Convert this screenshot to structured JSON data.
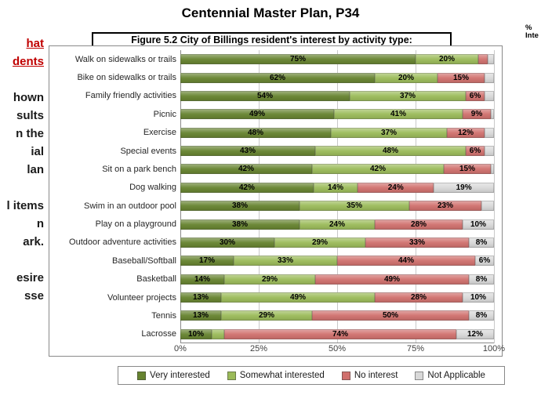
{
  "page": {
    "title": "Centennial Master Plan,  P34",
    "figure_caption": "Figure 5.2  City of Billings resident's interest by activity type:",
    "corner_fragments": [
      "%",
      "Inte"
    ]
  },
  "left_fragments": [
    {
      "text": "hat",
      "style": "red"
    },
    {
      "text": "dents",
      "style": "red"
    },
    {
      "text": "",
      "style": "plain"
    },
    {
      "text": "hown",
      "style": "plain"
    },
    {
      "text": "sults",
      "style": "plain"
    },
    {
      "text": "n the",
      "style": "plain"
    },
    {
      "text": "ial",
      "style": "plain"
    },
    {
      "text": "lan",
      "style": "plain"
    },
    {
      "text": "",
      "style": "plain"
    },
    {
      "text": "l items",
      "style": "plain"
    },
    {
      "text": "n",
      "style": "plain"
    },
    {
      "text": "ark.",
      "style": "plain"
    },
    {
      "text": "",
      "style": "plain"
    },
    {
      "text": "esire",
      "style": "plain"
    },
    {
      "text": "sse",
      "style": "plain"
    }
  ],
  "chart_data": {
    "type": "bar",
    "orientation": "horizontal",
    "stacked": true,
    "title": "Figure 5.2  City of Billings resident's interest by activity type:",
    "xlabel": "",
    "ylabel": "",
    "xlim": [
      0,
      100
    ],
    "x_ticks": [
      "0%",
      "25%",
      "50%",
      "75%",
      "100%"
    ],
    "grid": true,
    "legend_position": "bottom",
    "min_label_value": 6,
    "categories": [
      "Walk on sidewalks or trails",
      "Bike on sidewalks or trails",
      "Family friendly activities",
      "Picnic",
      "Exercise",
      "Special events",
      "Sit on a park bench",
      "Dog walking",
      "Swim in an outdoor pool",
      "Play on a playground",
      "Outdoor adventure activities",
      "Baseball/Softball",
      "Basketball",
      "Volunteer projects",
      "Tennis",
      "Lacrosse"
    ],
    "series": [
      {
        "name": "Very interested",
        "color": "#66832f",
        "values": [
          75,
          62,
          54,
          49,
          48,
          43,
          42,
          42,
          38,
          38,
          30,
          17,
          14,
          13,
          13,
          10
        ]
      },
      {
        "name": "Somewhat interested",
        "color": "#9bbb59",
        "values": [
          20,
          20,
          37,
          41,
          37,
          48,
          42,
          14,
          35,
          24,
          29,
          33,
          29,
          49,
          29,
          4
        ]
      },
      {
        "name": "No interest",
        "color": "#d0706d",
        "values": [
          3,
          15,
          6,
          9,
          12,
          6,
          15,
          24,
          23,
          28,
          33,
          44,
          49,
          28,
          50,
          74
        ]
      },
      {
        "name": "Not Applicable",
        "color": "#d9d9d9",
        "values": [
          2,
          3,
          3,
          1,
          3,
          3,
          1,
          19,
          4,
          10,
          8,
          6,
          8,
          10,
          8,
          12
        ]
      }
    ]
  }
}
